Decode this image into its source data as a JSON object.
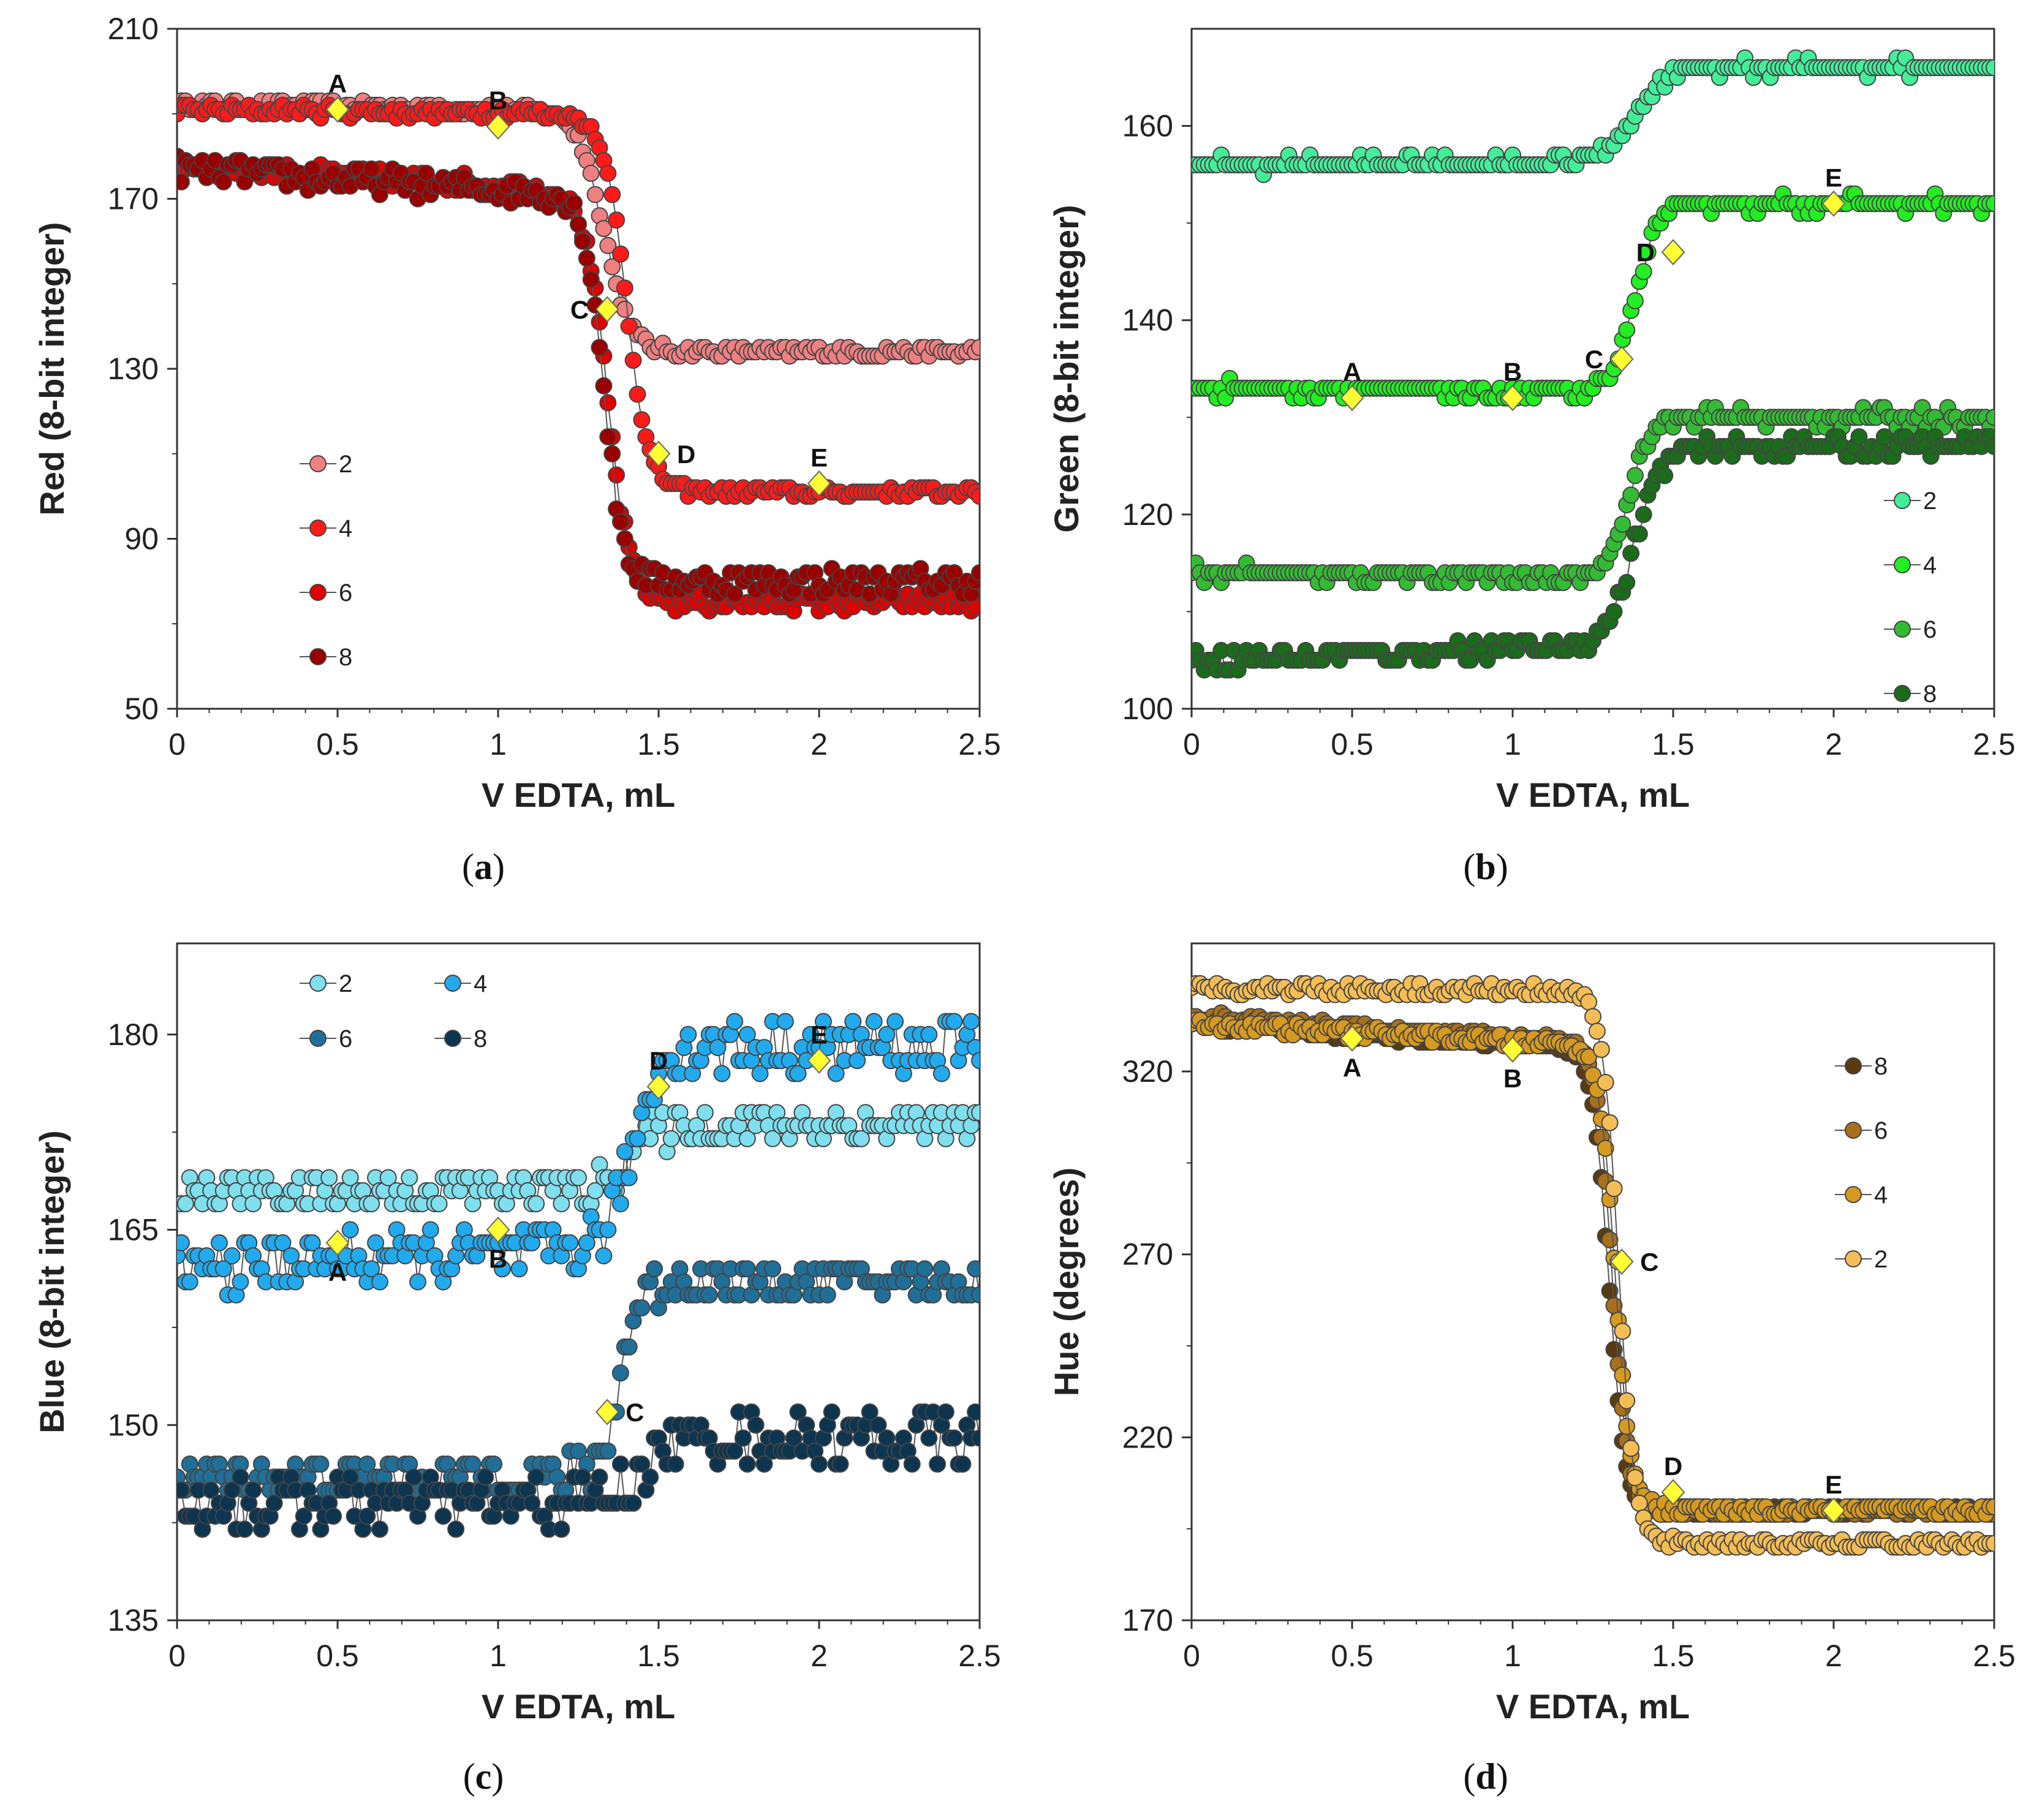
{
  "figure": {
    "marker_color": "#ffff33",
    "line_color": "#555555"
  },
  "chart_data": [
    {
      "id": "a",
      "type": "scatter",
      "caption_prefix": "(",
      "caption_letter": "a",
      "caption_suffix": ")",
      "xlabel": "V EDTA, mL",
      "ylabel": "Red (8-bit integer)",
      "xlim": [
        0,
        2.5
      ],
      "ylim": [
        50,
        210
      ],
      "xticks": [
        "0",
        "0.5",
        "1",
        "1.5",
        "2",
        "2.5"
      ],
      "yticks": [
        "50",
        "90",
        "130",
        "170",
        "210"
      ],
      "legend_position": "center-left",
      "legend_columns": 1,
      "series": [
        {
          "name": "2",
          "color": "#f08080",
          "kind": "sigmoid",
          "start": 192,
          "end": 134,
          "x0": 1.33,
          "k": 0.04,
          "slope": -2,
          "noise": 1.2
        },
        {
          "name": "4",
          "color": "#ff1a1a",
          "kind": "sigmoid",
          "start": 191,
          "end": 101,
          "x0": 1.4,
          "k": 0.035,
          "slope": -2,
          "noise": 1.2
        },
        {
          "name": "6",
          "color": "#e00000",
          "kind": "sigmoid",
          "start": 178,
          "end": 75,
          "x0": 1.34,
          "k": 0.035,
          "slope": -12,
          "noise": 2
        },
        {
          "name": "8",
          "color": "#990000",
          "kind": "sigmoid",
          "start": 177,
          "end": 80,
          "x0": 1.33,
          "k": 0.03,
          "slope": -12,
          "noise": 3
        }
      ],
      "annotations": [
        {
          "label": "A",
          "x": 0.5,
          "y": 191,
          "pos": "above"
        },
        {
          "label": "B",
          "x": 1.0,
          "y": 187,
          "pos": "above"
        },
        {
          "label": "C",
          "x": 1.34,
          "y": 144,
          "pos": "left"
        },
        {
          "label": "D",
          "x": 1.5,
          "y": 110,
          "pos": "right"
        },
        {
          "label": "E",
          "x": 2.0,
          "y": 103,
          "pos": "above"
        }
      ]
    },
    {
      "id": "b",
      "type": "scatter",
      "caption_prefix": "(",
      "caption_letter": "b",
      "caption_suffix": ")",
      "xlabel": "V EDTA, mL",
      "ylabel": "Green (8-bit integer)",
      "xlim": [
        0,
        2.5
      ],
      "ylim": [
        100,
        170
      ],
      "xticks": [
        "0",
        "0.5",
        "1",
        "1.5",
        "2",
        "2.5"
      ],
      "yticks": [
        "100",
        "120",
        "140",
        "160"
      ],
      "legend_position": "bottom-right",
      "legend_columns": 1,
      "series": [
        {
          "name": "2",
          "color": "#44ee99",
          "kind": "sigmoid",
          "start": 156,
          "end": 166,
          "x0": 1.38,
          "k": 0.05,
          "slope": 0.5,
          "noise": 0.6
        },
        {
          "name": "4",
          "color": "#22ee22",
          "kind": "sigmoid",
          "start": 133,
          "end": 152,
          "x0": 1.38,
          "k": 0.035,
          "slope": -1,
          "noise": 0.6
        },
        {
          "name": "6",
          "color": "#33bb33",
          "kind": "sigmoid",
          "start": 114,
          "end": 130,
          "x0": 1.36,
          "k": 0.035,
          "slope": -1,
          "noise": 0.7
        },
        {
          "name": "8",
          "color": "#1a6b1a",
          "kind": "sigmoid",
          "start": 105,
          "end": 127,
          "x0": 1.38,
          "k": 0.04,
          "slope": 3,
          "noise": 0.8
        }
      ],
      "annotations": [
        {
          "label": "A",
          "x": 0.5,
          "y": 132,
          "pos": "above"
        },
        {
          "label": "B",
          "x": 1.0,
          "y": 132,
          "pos": "above"
        },
        {
          "label": "C",
          "x": 1.34,
          "y": 136,
          "pos": "left"
        },
        {
          "label": "D",
          "x": 1.5,
          "y": 147,
          "pos": "left"
        },
        {
          "label": "E",
          "x": 2.0,
          "y": 152,
          "pos": "above"
        }
      ]
    },
    {
      "id": "c",
      "type": "scatter",
      "caption_prefix": "(",
      "caption_letter": "c",
      "caption_suffix": ")",
      "xlabel": "V EDTA, mL",
      "ylabel": "Blue (8-bit integer)",
      "xlim": [
        0,
        2.5
      ],
      "ylim": [
        135,
        187
      ],
      "xticks": [
        "0",
        "0.5",
        "1",
        "1.5",
        "2",
        "2.5"
      ],
      "yticks": [
        "135",
        "150",
        "165",
        "180"
      ],
      "legend_position": "top-left",
      "legend_columns": 2,
      "series": [
        {
          "name": "2",
          "color": "#7fdfee",
          "kind": "sigmoid",
          "start": 168,
          "end": 173,
          "x0": 1.4,
          "k": 0.04,
          "slope": 0,
          "noise": 1.5
        },
        {
          "name": "4",
          "color": "#22aaee",
          "kind": "sigmoid",
          "start": 162,
          "end": 179,
          "x0": 1.42,
          "k": 0.04,
          "slope": 3,
          "noise": 2
        },
        {
          "name": "6",
          "color": "#1f6f99",
          "kind": "sigmoid",
          "start": 146,
          "end": 161,
          "x0": 1.38,
          "k": 0.03,
          "slope": 0,
          "noise": 1.5
        },
        {
          "name": "8",
          "color": "#0d3550",
          "kind": "sigmoid",
          "start": 144,
          "end": 149,
          "x0": 1.45,
          "k": 0.04,
          "slope": 0,
          "noise": 2
        }
      ],
      "annotations": [
        {
          "label": "A",
          "x": 0.5,
          "y": 164,
          "pos": "below"
        },
        {
          "label": "B",
          "x": 1.0,
          "y": 165,
          "pos": "below"
        },
        {
          "label": "C",
          "x": 1.34,
          "y": 151,
          "pos": "right"
        },
        {
          "label": "D",
          "x": 1.5,
          "y": 176,
          "pos": "above"
        },
        {
          "label": "E",
          "x": 2.0,
          "y": 178,
          "pos": "above"
        }
      ]
    },
    {
      "id": "d",
      "type": "scatter",
      "caption_prefix": "(",
      "caption_letter": "d",
      "caption_suffix": ")",
      "xlabel": "V EDTA, mL",
      "ylabel": "Hue (degrees)",
      "xlim": [
        0,
        2.5
      ],
      "ylim": [
        170,
        355
      ],
      "xticks": [
        "0",
        "0.5",
        "1",
        "1.5",
        "2",
        "2.5"
      ],
      "yticks": [
        "170",
        "220",
        "270",
        "320"
      ],
      "legend_position": "top-right",
      "legend_columns": 1,
      "series": [
        {
          "name": "8",
          "color": "#5a3a10",
          "kind": "sigmoid",
          "start": 333,
          "end": 200,
          "x0": 1.3,
          "k": 0.025,
          "slope": -14,
          "noise": 1.2
        },
        {
          "name": "6",
          "color": "#a8701a",
          "kind": "sigmoid",
          "start": 335,
          "end": 200,
          "x0": 1.31,
          "k": 0.025,
          "slope": -14,
          "noise": 1.2
        },
        {
          "name": "4",
          "color": "#d69a20",
          "kind": "sigmoid",
          "start": 333,
          "end": 200,
          "x0": 1.32,
          "k": 0.025,
          "slope": -12,
          "noise": 1.5
        },
        {
          "name": "2",
          "color": "#f5bd55",
          "kind": "sigmoid",
          "start": 343,
          "end": 191,
          "x0": 1.33,
          "k": 0.025,
          "slope": -2,
          "noise": 1.5
        }
      ],
      "annotations": [
        {
          "label": "A",
          "x": 0.5,
          "y": 329,
          "pos": "below"
        },
        {
          "label": "B",
          "x": 1.0,
          "y": 326,
          "pos": "below"
        },
        {
          "label": "C",
          "x": 1.34,
          "y": 268,
          "pos": "right"
        },
        {
          "label": "D",
          "x": 1.5,
          "y": 205,
          "pos": "above"
        },
        {
          "label": "E",
          "x": 2.0,
          "y": 200,
          "pos": "above"
        }
      ]
    }
  ]
}
